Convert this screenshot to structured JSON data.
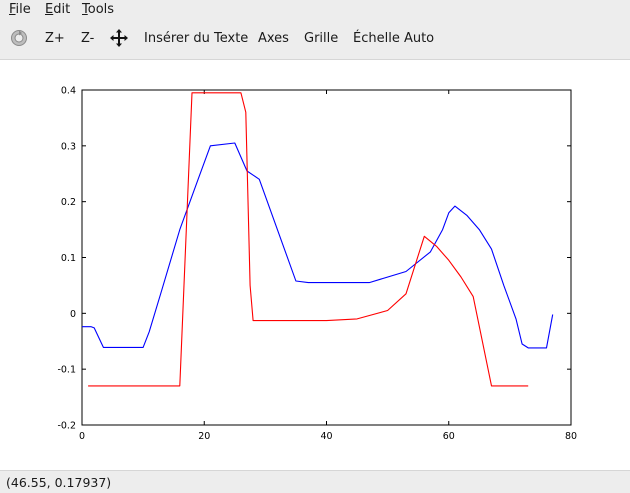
{
  "menu": {
    "items": [
      {
        "label": "File",
        "accel": "F",
        "rest": "ile"
      },
      {
        "label": "Edit",
        "accel": "E",
        "rest": "dit"
      },
      {
        "label": "Tools",
        "accel": "T",
        "rest": "ools"
      }
    ]
  },
  "toolbar": {
    "zoom_in": "Z+",
    "zoom_out": "Z-",
    "insert_text": "Insérer du Texte",
    "axes": "Axes",
    "grid": "Grille",
    "autoscale": "Échelle Auto"
  },
  "status": {
    "coordinates": "(46.55, 0.17937)"
  },
  "colors": {
    "series_blue": "#0000ff",
    "series_red": "#ff0000"
  },
  "chart_data": {
    "type": "line",
    "xlim": [
      0,
      80
    ],
    "ylim": [
      -0.2,
      0.4
    ],
    "xticks": [
      0,
      20,
      40,
      60,
      80
    ],
    "yticks": [
      -0.2,
      -0.1,
      0,
      0.1,
      0.2,
      0.3,
      0.4
    ],
    "xtick_labels": [
      "0",
      "20",
      "40",
      "60",
      "80"
    ],
    "ytick_labels": [
      "-0.2",
      "-0.1",
      "0",
      "0.1",
      "0.2",
      "0.3",
      "0.4"
    ],
    "grid": false,
    "series": [
      {
        "color": "#0000ff",
        "x": [
          0,
          1.5,
          2,
          3.5,
          10,
          11,
          13,
          16,
          19,
          21,
          25,
          26,
          27,
          29,
          35,
          37,
          47,
          53,
          57,
          59,
          60,
          61,
          63,
          65,
          67,
          69,
          71,
          72,
          73,
          76,
          77
        ],
        "y": [
          -0.024,
          -0.024,
          -0.026,
          -0.061,
          -0.061,
          -0.033,
          0.04,
          0.15,
          0.24,
          0.3,
          0.305,
          0.28,
          0.255,
          0.24,
          0.058,
          0.055,
          0.055,
          0.075,
          0.11,
          0.15,
          0.18,
          0.192,
          0.175,
          0.15,
          0.115,
          0.05,
          -0.01,
          -0.055,
          -0.062,
          -0.062,
          -0.002
        ]
      },
      {
        "color": "#ff0000",
        "x": [
          1,
          16,
          18,
          26,
          26.8,
          27.5,
          28,
          40,
          45,
          50,
          53,
          56,
          58,
          60,
          62,
          64,
          67,
          73
        ],
        "y": [
          -0.13,
          -0.13,
          0.395,
          0.395,
          0.36,
          0.05,
          -0.013,
          -0.013,
          -0.01,
          0.005,
          0.035,
          0.138,
          0.12,
          0.095,
          0.065,
          0.03,
          -0.13,
          -0.13
        ]
      }
    ]
  }
}
